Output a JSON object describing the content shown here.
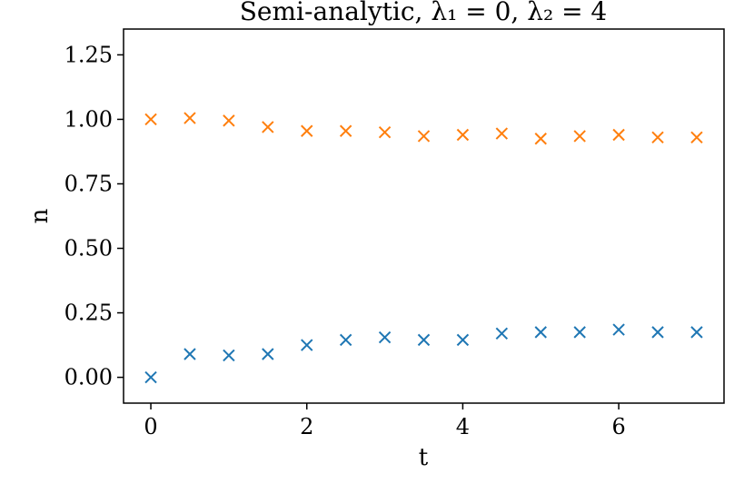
{
  "chart_data": {
    "type": "scatter",
    "title": "Semi-analytic, λ₁ = 0, λ₂ = 4",
    "xlabel": "t",
    "ylabel": "n",
    "xlim": [
      -0.35,
      7.35
    ],
    "ylim": [
      -0.1,
      1.35
    ],
    "xticks": [
      0,
      2,
      4,
      6
    ],
    "xtick_labels": [
      "0",
      "2",
      "4",
      "6"
    ],
    "yticks": [
      0.0,
      0.25,
      0.5,
      0.75,
      1.0,
      1.25
    ],
    "ytick_labels": [
      "0.00",
      "0.25",
      "0.50",
      "0.75",
      "1.00",
      "1.25"
    ],
    "grid": false,
    "marker": "x",
    "x": [
      0,
      0.5,
      1,
      1.5,
      2,
      2.5,
      3,
      3.5,
      4,
      4.5,
      5,
      5.5,
      6,
      6.5,
      7
    ],
    "series": [
      {
        "color": "#1f77b4",
        "values": [
          0.0,
          0.09,
          0.085,
          0.09,
          0.125,
          0.145,
          0.155,
          0.145,
          0.145,
          0.17,
          0.175,
          0.175,
          0.185,
          0.175,
          0.175
        ]
      },
      {
        "color": "#ff7f0e",
        "values": [
          1.0,
          1.005,
          0.995,
          0.97,
          0.955,
          0.955,
          0.95,
          0.935,
          0.94,
          0.945,
          0.925,
          0.935,
          0.94,
          0.93,
          0.93
        ]
      }
    ]
  }
}
